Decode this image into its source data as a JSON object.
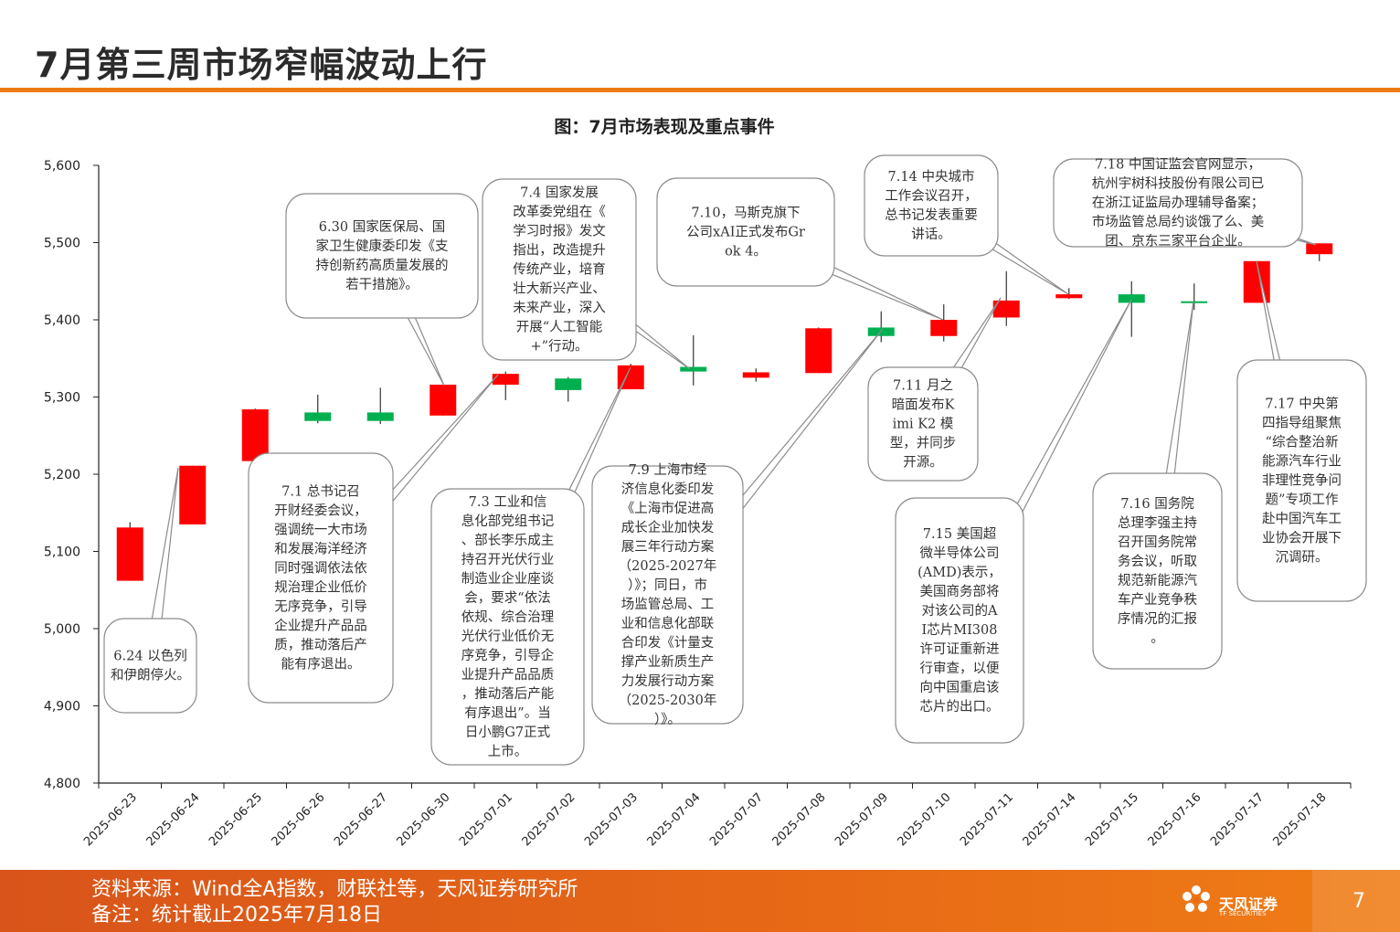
{
  "page": {
    "title": "7月第三周市场窄幅波动上行",
    "chart_title": "图：7月市场表现及重点事件",
    "footer_source": "资料来源：Wind全A指数，财联社等，天风证券研究所",
    "footer_note": "备注：统计截止2025年7月18日",
    "page_number": "7",
    "logo_cn": "天风证券",
    "logo_en": "TF SECURITIES",
    "colors": {
      "up": "#ff0000",
      "down": "#00b050",
      "accent": "#ee7a12",
      "footer": "#e2621a"
    }
  },
  "chart_data": {
    "type": "candlestick",
    "title": "图：7月市场表现及重点事件",
    "xlabel": "",
    "ylabel": "",
    "ylim": [
      4800,
      5600
    ],
    "yticks": [
      4800,
      4900,
      5000,
      5100,
      5200,
      5300,
      5400,
      5500,
      5600
    ],
    "ytick_labels": [
      "4,800",
      "4,900",
      "5,000",
      "5,100",
      "5,200",
      "5,300",
      "5,400",
      "5,500",
      "5,600"
    ],
    "categories": [
      "2025-06-23",
      "2025-06-24",
      "2025-06-25",
      "2025-06-26",
      "2025-06-27",
      "2025-06-30",
      "2025-07-01",
      "2025-07-02",
      "2025-07-03",
      "2025-07-04",
      "2025-07-07",
      "2025-07-08",
      "2025-07-09",
      "2025-07-10",
      "2025-07-11",
      "2025-07-14",
      "2025-07-15",
      "2025-07-16",
      "2025-07-17",
      "2025-07-18"
    ],
    "candles": [
      {
        "date": "2025-06-23",
        "open": 5062,
        "close": 5131,
        "high": 5138,
        "low": 5062
      },
      {
        "date": "2025-06-24",
        "open": 5135,
        "close": 5211,
        "high": 5211,
        "low": 5135
      },
      {
        "date": "2025-06-25",
        "open": 5217,
        "close": 5284,
        "high": 5285,
        "low": 5212
      },
      {
        "date": "2025-06-26",
        "open": 5280,
        "close": 5269,
        "high": 5303,
        "low": 5266
      },
      {
        "date": "2025-06-27",
        "open": 5280,
        "close": 5269,
        "high": 5312,
        "low": 5265
      },
      {
        "date": "2025-06-30",
        "open": 5276,
        "close": 5316,
        "high": 5316,
        "low": 5276
      },
      {
        "date": "2025-07-01",
        "open": 5316,
        "close": 5330,
        "high": 5333,
        "low": 5296
      },
      {
        "date": "2025-07-02",
        "open": 5324,
        "close": 5309,
        "high": 5326,
        "low": 5294
      },
      {
        "date": "2025-07-03",
        "open": 5310,
        "close": 5341,
        "high": 5343,
        "low": 5310
      },
      {
        "date": "2025-07-04",
        "open": 5339,
        "close": 5333,
        "high": 5380,
        "low": 5315
      },
      {
        "date": "2025-07-07",
        "open": 5325,
        "close": 5332,
        "high": 5337,
        "low": 5320
      },
      {
        "date": "2025-07-08",
        "open": 5331,
        "close": 5389,
        "high": 5390,
        "low": 5331
      },
      {
        "date": "2025-07-09",
        "open": 5390,
        "close": 5379,
        "high": 5411,
        "low": 5371
      },
      {
        "date": "2025-07-10",
        "open": 5379,
        "close": 5400,
        "high": 5420,
        "low": 5372
      },
      {
        "date": "2025-07-11",
        "open": 5403,
        "close": 5425,
        "high": 5463,
        "low": 5392
      },
      {
        "date": "2025-07-14",
        "open": 5428,
        "close": 5433,
        "high": 5441,
        "low": 5427
      },
      {
        "date": "2025-07-15",
        "open": 5433,
        "close": 5422,
        "high": 5450,
        "low": 5378
      },
      {
        "date": "2025-07-16",
        "open": 5424,
        "close": 5422,
        "high": 5447,
        "low": 5413
      },
      {
        "date": "2025-07-17",
        "open": 5422,
        "close": 5476,
        "high": 5476,
        "low": 5422
      },
      {
        "date": "2025-07-18",
        "open": 5485,
        "close": 5499,
        "high": 5499,
        "low": 5476
      }
    ],
    "annotations": [
      {
        "id": "a624",
        "date": "2025-06-24",
        "text": "6.24 以色列和伊朗停火。"
      },
      {
        "id": "a630",
        "date": "2025-06-30",
        "text": "6.30 国家医保局、国家卫生健康委印发《支持创新药高质量发展的若干措施》。"
      },
      {
        "id": "a701",
        "date": "2025-07-01",
        "text": "7.1 总书记召开财经委会议，强调统一大市场和发展海洋经济同时强调依法依规治理企业低价无序竞争，引导企业提升产品品质，推动落后产能有序退出。"
      },
      {
        "id": "a703",
        "date": "2025-07-03",
        "text": "7.3 工业和信息化部党组书记、部长李乐成主持召开光伏行业制造业企业座谈会，要求“依法依规、综合治理光伏行业低价无序竞争，引导企业提升产品品质，推动落后产能有序退出”。当日小鹏G7正式上市。"
      },
      {
        "id": "a704",
        "date": "2025-07-04",
        "text": "7.4 国家发展改革委党组在《学习时报》发文指出，改造提升传统产业，培育壮大新兴产业、未来产业，深入开展“人工智能+”行动。"
      },
      {
        "id": "a709",
        "date": "2025-07-09",
        "text": "7.9 上海市经济信息化委印发《上海市促进高成长企业加快发展三年行动方案（2025-2027年）》；同日，市场监管总局、工业和信息化部联合印发《计量支撑产业新质生产力发展行动方案（2025-2030年）》。"
      },
      {
        "id": "a710",
        "date": "2025-07-10",
        "text": "7.10，马斯克旗下公司xAI正式发布Grok 4。"
      },
      {
        "id": "a711",
        "date": "2025-07-11",
        "text": "7.11 月之暗面发布Kimi K2 模型，并同步开源。"
      },
      {
        "id": "a714",
        "date": "2025-07-14",
        "text": "7.14 中央城市工作会议召开，总书记发表重要讲话。"
      },
      {
        "id": "a715",
        "date": "2025-07-15",
        "text": "7.15 美国超微半导体公司(AMD)表示，美国商务部将对该公司的AI芯片MI308许可证重新进行审查，以便向中国重启该芯片的出口。"
      },
      {
        "id": "a716",
        "date": "2025-07-16",
        "text": "7.16 国务院总理李强主持召开国务院常务会议，听取规范新能源汽车产业竞争秩序情况的汇报。"
      },
      {
        "id": "a717",
        "date": "2025-07-17",
        "text": "7.17 中央第四指导组聚焦“综合整治新能源汽车行业非理性竞争问题”专项工作赴中国汽车工业协会开展下沉调研。"
      },
      {
        "id": "a718",
        "date": "2025-07-18",
        "text": "7.18 中国证监会官网显示，杭州宇树科技股份有限公司已在浙江证监局办理辅导备案；市场监管总局约谈饿了么、美团、京东三家平台企业。"
      }
    ]
  }
}
